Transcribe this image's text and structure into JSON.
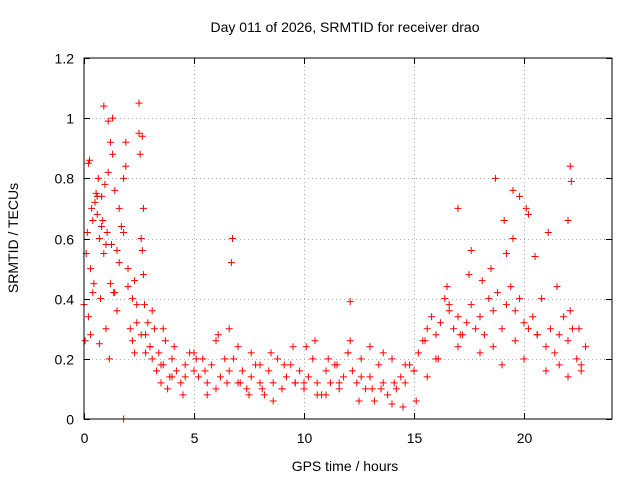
{
  "chart_data": {
    "type": "scatter",
    "title": "Day 011 of 2026, SRMTID for receiver drao",
    "xlabel": "GPS time / hours",
    "ylabel": "SRMTID / TECUs",
    "xlim": [
      0,
      24
    ],
    "ylim": [
      0,
      1.2
    ],
    "xticks": [
      0,
      5,
      10,
      15,
      20
    ],
    "xtick_labels": [
      "0",
      "5",
      "10",
      "15",
      "20"
    ],
    "yticks": [
      0,
      0.2,
      0.4,
      0.6,
      0.8,
      1,
      1.2
    ],
    "ytick_labels": [
      "0",
      "0.2",
      "0.4",
      "0.6",
      "0.8",
      "1",
      "1.2"
    ],
    "grid": true,
    "marker": "+",
    "colors": {
      "series": "#ff0000",
      "axes": "#000000",
      "grid": "#b0b0b0"
    },
    "series": [
      {
        "name": "SRMTID",
        "points_x": [
          0.0,
          0.1,
          0.15,
          0.2,
          0.25,
          0.3,
          0.35,
          0.4,
          0.45,
          0.5,
          0.55,
          0.6,
          0.65,
          0.7,
          0.75,
          0.8,
          0.85,
          0.9,
          0.95,
          1.0,
          1.05,
          1.1,
          1.15,
          1.2,
          1.25,
          1.3,
          1.35,
          1.4,
          1.5,
          1.6,
          1.7,
          1.8,
          1.9,
          2.0,
          2.1,
          2.2,
          2.3,
          2.4,
          2.5,
          2.55,
          2.6,
          2.65,
          2.7,
          2.75,
          2.8,
          2.9,
          3.0,
          3.1,
          3.2,
          3.3,
          3.4,
          3.5,
          3.6,
          3.7,
          3.8,
          3.9,
          4.0,
          4.2,
          4.4,
          4.6,
          4.8,
          5.0,
          5.2,
          5.4,
          5.6,
          5.8,
          6.0,
          6.2,
          6.4,
          6.6,
          6.7,
          6.8,
          7.0,
          7.2,
          7.4,
          7.6,
          7.8,
          8.0,
          8.2,
          8.4,
          8.6,
          8.8,
          9.0,
          9.2,
          9.4,
          9.6,
          9.8,
          10.0,
          10.2,
          10.4,
          10.6,
          10.8,
          11.0,
          11.2,
          11.4,
          11.6,
          11.8,
          12.0,
          12.2,
          12.4,
          12.6,
          12.8,
          13.0,
          13.2,
          13.4,
          13.6,
          13.8,
          14.0,
          14.2,
          14.4,
          14.6,
          14.8,
          15.0,
          15.2,
          15.4,
          15.6,
          15.8,
          16.0,
          16.2,
          16.4,
          16.6,
          16.8,
          17.0,
          17.2,
          17.4,
          17.6,
          17.8,
          18.0,
          18.2,
          18.4,
          18.6,
          18.8,
          19.0,
          19.2,
          19.4,
          19.6,
          19.8,
          20.0,
          20.2,
          20.4,
          20.6,
          20.8,
          21.0,
          21.2,
          21.4,
          21.6,
          21.8,
          22.0,
          22.2,
          22.4,
          22.6,
          22.8,
          0.05,
          0.2,
          0.4,
          0.6,
          0.8,
          1.0,
          1.2,
          1.4,
          1.6,
          1.8,
          2.0,
          2.2,
          2.4,
          2.6,
          2.8,
          3.0,
          3.5,
          4.0,
          4.5,
          5.0,
          5.5,
          6.0,
          6.5,
          7.0,
          7.5,
          8.0,
          8.5,
          9.0,
          9.5,
          10.0,
          10.5,
          11.0,
          11.5,
          12.0,
          12.5,
          13.0,
          13.5,
          14.0,
          14.5,
          15.0,
          15.5,
          16.0,
          16.5,
          17.0,
          17.5,
          18.0,
          18.5,
          19.0,
          19.5,
          20.0,
          20.5,
          21.0,
          21.5,
          22.0,
          22.5,
          0.3,
          0.7,
          1.1,
          1.5,
          1.9,
          2.3,
          2.7,
          3.1,
          3.6,
          4.1,
          4.6,
          5.1,
          5.6,
          6.1,
          6.6,
          7.1,
          7.6,
          8.1,
          8.6,
          9.1,
          9.6,
          10.1,
          10.6,
          11.1,
          11.6,
          12.1,
          12.6,
          13.1,
          13.6,
          14.1,
          14.6,
          15.1,
          15.6,
          16.1,
          16.6,
          17.1,
          17.6,
          18.1,
          18.6,
          19.1,
          19.6,
          20.1,
          20.6,
          21.1,
          21.6,
          22.1,
          22.6,
          0.9,
          1.3,
          2.5,
          2.65,
          6.75,
          12.1,
          17.0,
          18.7,
          19.5,
          19.8,
          22.1,
          22.15,
          1.8,
          19.2,
          20.2,
          22.0
        ],
        "points_y": [
          0.38,
          0.55,
          0.62,
          0.34,
          0.86,
          0.5,
          0.7,
          0.66,
          0.45,
          0.72,
          0.75,
          0.68,
          0.8,
          0.6,
          0.4,
          0.74,
          0.66,
          0.55,
          0.78,
          0.3,
          0.62,
          0.99,
          0.2,
          0.45,
          0.58,
          0.88,
          0.42,
          0.76,
          0.36,
          0.52,
          0.64,
          0.8,
          0.84,
          0.44,
          0.3,
          0.26,
          0.22,
          0.38,
          0.95,
          0.88,
          0.6,
          0.56,
          0.48,
          0.38,
          0.28,
          0.32,
          0.24,
          0.2,
          0.3,
          0.16,
          0.22,
          0.12,
          0.18,
          0.26,
          0.1,
          0.14,
          0.2,
          0.16,
          0.12,
          0.18,
          0.22,
          0.16,
          0.14,
          0.2,
          0.12,
          0.18,
          0.1,
          0.14,
          0.2,
          0.3,
          0.52,
          0.2,
          0.12,
          0.16,
          0.1,
          0.14,
          0.18,
          0.12,
          0.08,
          0.16,
          0.12,
          0.2,
          0.1,
          0.14,
          0.18,
          0.12,
          0.16,
          0.1,
          0.14,
          0.2,
          0.12,
          0.08,
          0.16,
          0.12,
          0.18,
          0.1,
          0.14,
          0.22,
          0.16,
          0.12,
          0.2,
          0.1,
          0.14,
          0.06,
          0.18,
          0.12,
          0.08,
          0.05,
          0.1,
          0.14,
          0.12,
          0.18,
          0.16,
          0.22,
          0.26,
          0.3,
          0.34,
          0.28,
          0.32,
          0.4,
          0.36,
          0.3,
          0.34,
          0.28,
          0.32,
          0.38,
          0.3,
          0.34,
          0.28,
          0.4,
          0.36,
          0.42,
          0.3,
          0.38,
          0.44,
          0.36,
          0.4,
          0.32,
          0.3,
          0.34,
          0.28,
          0.4,
          0.24,
          0.3,
          0.22,
          0.28,
          0.34,
          0.26,
          0.3,
          0.2,
          0.18,
          0.24,
          0.26,
          0.85,
          0.42,
          0.74,
          0.64,
          0.58,
          0.92,
          0.42,
          0.7,
          0.62,
          0.5,
          0.4,
          0.32,
          0.28,
          0.22,
          0.24,
          0.18,
          0.14,
          0.08,
          0.22,
          0.16,
          0.26,
          0.12,
          0.24,
          0.08,
          0.18,
          0.22,
          0.1,
          0.24,
          0.12,
          0.26,
          0.08,
          0.18,
          0.22,
          0.06,
          0.24,
          0.1,
          0.2,
          0.04,
          0.16,
          0.26,
          0.2,
          0.44,
          0.24,
          0.48,
          0.22,
          0.5,
          0.18,
          0.6,
          0.2,
          0.54,
          0.16,
          0.44,
          0.14,
          0.3,
          0.28,
          0.25,
          0.82,
          0.56,
          0.92,
          0.46,
          0.7,
          0.36,
          0.3,
          0.24,
          0.14,
          0.2,
          0.08,
          0.28,
          0.16,
          0.12,
          0.22,
          0.1,
          0.06,
          0.18,
          0.12,
          0.24,
          0.08,
          0.2,
          0.12,
          0.26,
          0.14,
          0.1,
          0.22,
          0.12,
          0.18,
          0.06,
          0.14,
          0.2,
          0.38,
          0.28,
          0.56,
          0.46,
          0.24,
          0.66,
          0.26,
          0.7,
          0.28,
          0.62,
          0.18,
          0.36,
          0.16,
          1.04,
          1.0,
          1.05,
          0.94,
          0.6,
          0.39,
          0.7,
          0.8,
          0.76,
          0.74,
          0.84,
          0.79,
          0.0,
          0.55,
          0.68,
          0.66
        ]
      }
    ]
  }
}
